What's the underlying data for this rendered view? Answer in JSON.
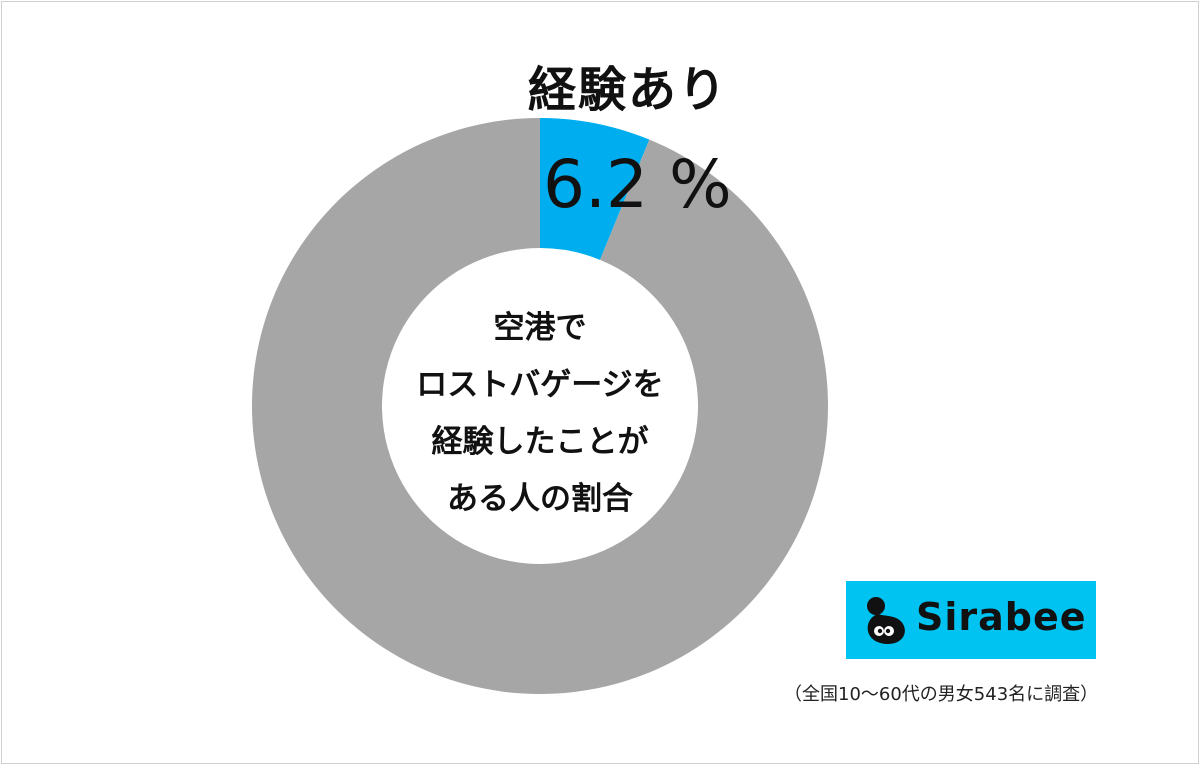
{
  "chart_data": {
    "type": "pie",
    "style": "donut",
    "slices": [
      {
        "label": "経験あり",
        "value": 6.2,
        "color": "#00aeef"
      },
      {
        "label": "",
        "value": 93.8,
        "color": "#a6a6a6"
      }
    ],
    "highlight_label": "経験あり",
    "highlight_value_text": "6.2 %",
    "center_text": [
      "空港で",
      "ロストバゲージを",
      "経験したことが",
      "ある人の割合"
    ]
  },
  "logo": {
    "text": "Sirabee",
    "background": "#00c3f2"
  },
  "footnote": "（全国10～60代の男女543名に調査）"
}
